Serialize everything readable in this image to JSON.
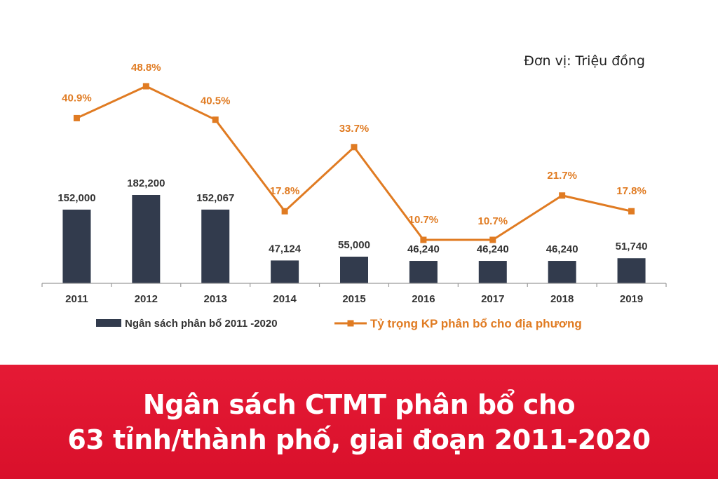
{
  "unit_label": "Đơn vị: Triệu đồng",
  "banner": {
    "line1": "Ngân sách CTMT phân bổ cho",
    "line2": "63 tỉnh/thành phố, giai đoạn 2011-2020"
  },
  "colors": {
    "bar": "#323b4d",
    "line": "#e07b22",
    "banner": "#e0162f",
    "year_text": "#333333"
  },
  "chart_data": {
    "type": "bar",
    "categories": [
      "2011",
      "2012",
      "2013",
      "2014",
      "2015",
      "2016",
      "2017",
      "2018",
      "2019"
    ],
    "series": [
      {
        "name": "Ngân sách phân bổ 2011  -2020",
        "type": "bar",
        "values": [
          152000,
          182200,
          152067,
          47124,
          55000,
          46240,
          46240,
          46240,
          51740
        ],
        "labels": [
          "152,000",
          "182,200",
          "152,067",
          "47,124",
          "55,000",
          "46,240",
          "46,240",
          "46,240",
          "51,740"
        ]
      },
      {
        "name": "Tỷ trọng KP phân bổ cho địa phương",
        "type": "line",
        "values": [
          40.9,
          48.8,
          40.5,
          17.8,
          33.7,
          10.7,
          10.7,
          21.7,
          17.8
        ],
        "labels": [
          "40.9%",
          "48.8%",
          "40.5%",
          "17.8%",
          "33.7%",
          "10.7%",
          "10.7%",
          "21.7%",
          "17.8%"
        ]
      }
    ],
    "legend": "bottom",
    "grid": false
  }
}
